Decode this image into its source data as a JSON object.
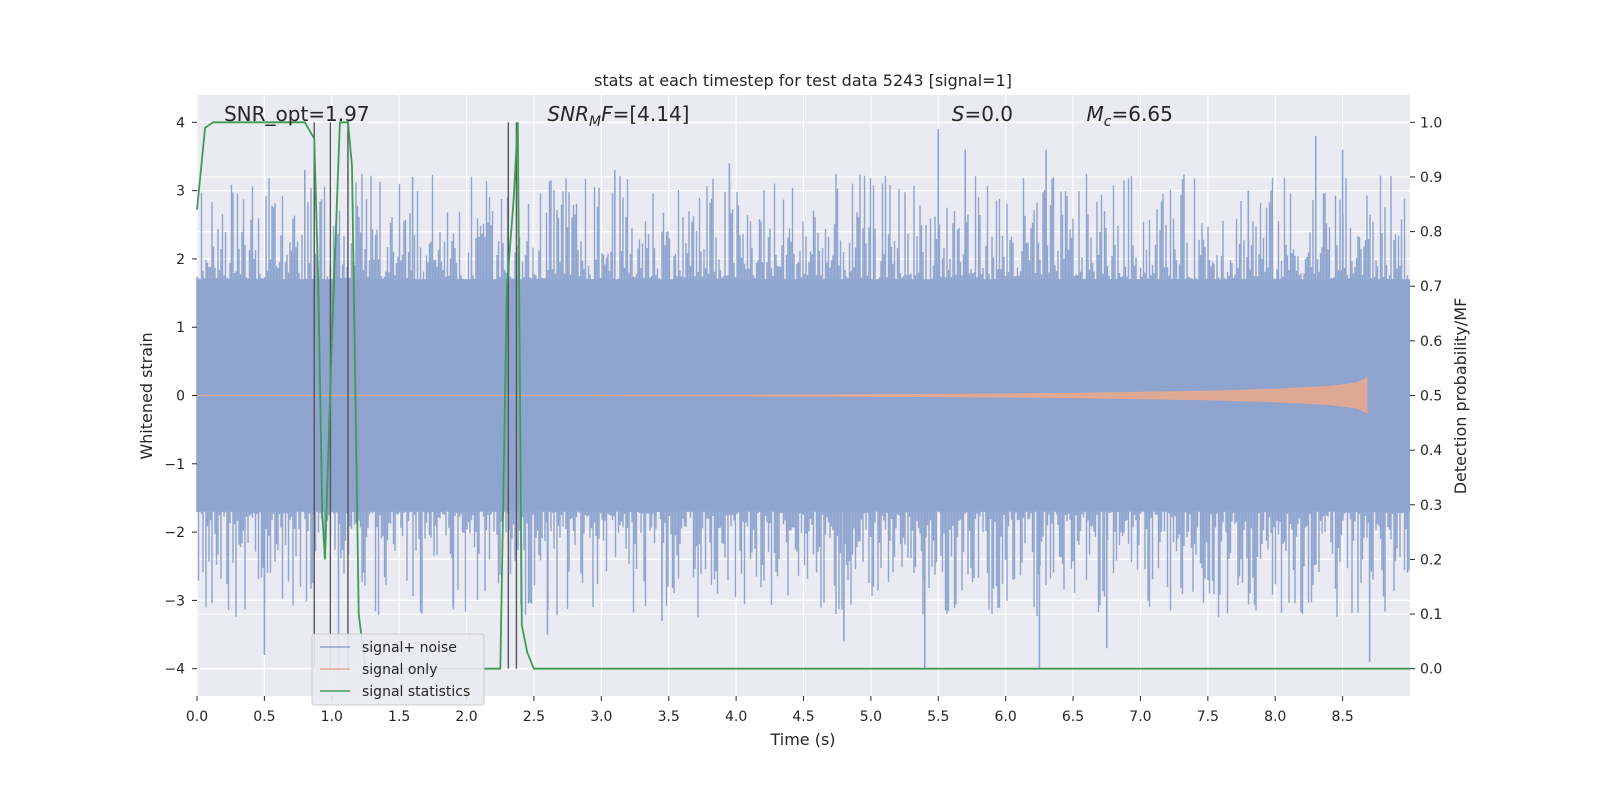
{
  "chart_data": {
    "type": "line",
    "title": "stats at each timestep for test data 5243 [signal=1]",
    "xlabel": "Time (s)",
    "ylabel": "Whitened strain",
    "ylabel_right": "Detection probability/MF",
    "xlim": [
      0.0,
      9.0
    ],
    "ylim": [
      -4.4,
      4.4
    ],
    "ylim_right": [
      -0.05,
      1.05
    ],
    "x_ticks": [
      "0.0",
      "0.5",
      "1.0",
      "1.5",
      "2.0",
      "2.5",
      "3.0",
      "3.5",
      "4.0",
      "4.5",
      "5.0",
      "5.5",
      "6.0",
      "6.5",
      "7.0",
      "7.5",
      "8.0",
      "8.5"
    ],
    "y_ticks": [
      "4",
      "3",
      "2",
      "1",
      "0",
      "−1",
      "−2",
      "−3",
      "−4"
    ],
    "y_ticks_right": [
      "1.0",
      "0.9",
      "0.8",
      "0.7",
      "0.6",
      "0.5",
      "0.4",
      "0.3",
      "0.2",
      "0.1",
      "0.0"
    ],
    "grid": true,
    "legend_position": "lower-left",
    "annotations": [
      {
        "text": "SNR_opt=1.97",
        "x": 0.2
      },
      {
        "text": "SNR_MF=[4.14]",
        "x": 2.6,
        "base": "SNR",
        "sub": "M",
        "tail": "F=[4.14]"
      },
      {
        "text": "S=0.0",
        "x": 5.6,
        "base": "S",
        "tail": "=0.0"
      },
      {
        "text": "M_c=6.65",
        "x": 6.6,
        "base": "M",
        "sub": "c",
        "tail": "=6.65"
      }
    ],
    "vertical_lines_x": [
      0.87,
      0.99,
      1.12,
      2.31,
      2.37
    ],
    "series": [
      {
        "name": "signal+ noise",
        "color": "#8fa4ce",
        "axis": "left",
        "envelope_y": [
          -1.7,
          1.7
        ],
        "peaks": [
          {
            "x": 0.5,
            "y": -3.8
          },
          {
            "x": 0.8,
            "y": 3.3
          },
          {
            "x": 1.05,
            "y": -4.0
          },
          {
            "x": 1.6,
            "y": 3.2
          },
          {
            "x": 1.9,
            "y": -3.1
          },
          {
            "x": 2.6,
            "y": -3.5
          },
          {
            "x": 3.1,
            "y": 3.3
          },
          {
            "x": 3.45,
            "y": -3.3
          },
          {
            "x": 3.95,
            "y": 3.4
          },
          {
            "x": 4.8,
            "y": -3.6
          },
          {
            "x": 5.4,
            "y": -4.0
          },
          {
            "x": 5.5,
            "y": 3.9
          },
          {
            "x": 5.7,
            "y": 3.6
          },
          {
            "x": 6.25,
            "y": -4.0
          },
          {
            "x": 6.3,
            "y": 3.6
          },
          {
            "x": 6.75,
            "y": -3.7
          },
          {
            "x": 7.8,
            "y": 3.0
          },
          {
            "x": 8.3,
            "y": 3.8
          },
          {
            "x": 8.5,
            "y": 3.6
          },
          {
            "x": 8.7,
            "y": -3.9
          }
        ]
      },
      {
        "name": "signal only",
        "color": "#e6a88e",
        "axis": "left",
        "x": [
          0.0,
          2.0,
          4.0,
          5.5,
          6.5,
          7.5,
          8.0,
          8.4,
          8.6,
          8.68,
          8.68
        ],
        "amplitude": [
          0.0,
          0.0,
          0.005,
          0.015,
          0.03,
          0.06,
          0.09,
          0.13,
          0.18,
          0.25,
          0.0
        ]
      },
      {
        "name": "signal statistics",
        "color": "#3e9b54",
        "axis": "right",
        "x": [
          0.0,
          0.06,
          0.12,
          0.3,
          0.6,
          0.8,
          0.87,
          0.9,
          0.93,
          0.95,
          1.0,
          1.06,
          1.12,
          1.15,
          1.2,
          1.25,
          1.4,
          1.8,
          2.0,
          2.25,
          2.3,
          2.35,
          2.38,
          2.41,
          2.45,
          2.5,
          3.0,
          5.0,
          7.0,
          9.0
        ],
        "y": [
          0.84,
          0.99,
          1.0,
          1.0,
          1.0,
          1.0,
          0.97,
          0.7,
          0.28,
          0.2,
          0.6,
          1.0,
          1.0,
          0.92,
          0.1,
          0.0,
          0.0,
          0.0,
          0.0,
          0.0,
          0.7,
          0.86,
          1.0,
          0.08,
          0.03,
          0.0,
          0.0,
          0.0,
          0.0,
          0.0
        ]
      }
    ]
  }
}
